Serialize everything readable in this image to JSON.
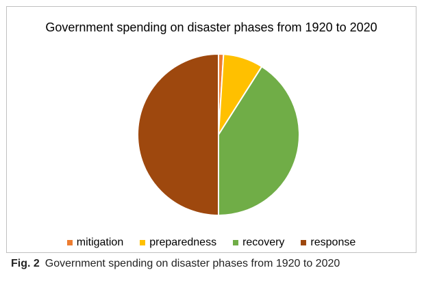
{
  "chart_data": {
    "type": "pie",
    "title": "Government spending on disaster phases from 1920 to 2020",
    "categories": [
      "mitigation",
      "preparedness",
      "recovery",
      "response"
    ],
    "values": [
      1,
      8,
      41,
      50
    ],
    "colors": [
      "#ed7d31",
      "#ffc000",
      "#70ad47",
      "#9e480e"
    ],
    "legend_position": "bottom",
    "start_angle_deg": 0,
    "direction": "clockwise"
  },
  "caption": {
    "label": "Fig. 2",
    "text": "Government spending on disaster phases from 1920 to 2020"
  }
}
